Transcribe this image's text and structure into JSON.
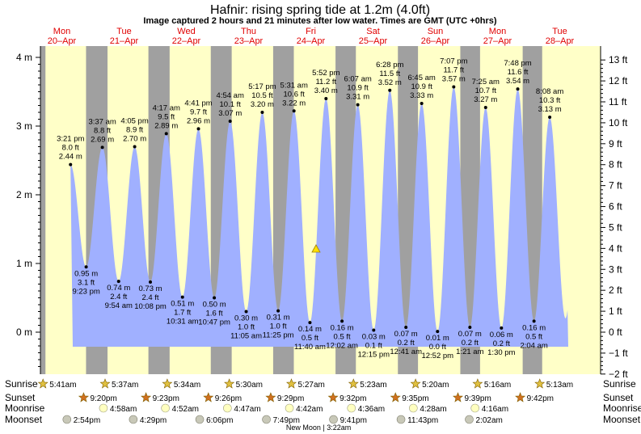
{
  "title": "Hafnir: rising  spring tide at 1.2m (4.0ft)",
  "subtitle": "Image captured 2 hours and 21 minutes after low water. Times are GMT (UTC +0hrs)",
  "colors": {
    "night": "#a0a0a0",
    "day": "#ffffc8",
    "tide": "#a0b0ff",
    "day_label": "#e00000",
    "sun_icon": "#e0c040",
    "sunset_icon": "#d07020",
    "moon_icon": "#ffffc0",
    "moonset_icon": "#c8c8b8",
    "current_marker": "#ffe000"
  },
  "days": [
    {
      "dow": "Mon",
      "date": "20–Apr"
    },
    {
      "dow": "Tue",
      "date": "21–Apr"
    },
    {
      "dow": "Wed",
      "date": "22–Apr"
    },
    {
      "dow": "Thu",
      "date": "23–Apr"
    },
    {
      "dow": "Fri",
      "date": "24–Apr"
    },
    {
      "dow": "Sat",
      "date": "25–Apr"
    },
    {
      "dow": "Sun",
      "date": "26–Apr"
    },
    {
      "dow": "Mon",
      "date": "27–Apr"
    },
    {
      "dow": "Tue",
      "date": "28–Apr"
    }
  ],
  "chart_data": {
    "type": "area",
    "left_axis": {
      "unit": "m",
      "ticks": [
        "0 m",
        "1 m",
        "2 m",
        "3 m",
        "4 m"
      ],
      "values": [
        0,
        1,
        2,
        3,
        4
      ],
      "range": [
        -0.6,
        4.2
      ]
    },
    "right_axis": {
      "unit": "ft",
      "ticks": [
        "−2 ft",
        "−1 ft",
        "0 ft",
        "1 ft",
        "2 ft",
        "3 ft",
        "4 ft",
        "5 ft",
        "6 ft",
        "7 ft",
        "8 ft",
        "9 ft",
        "10 ft",
        "11 ft",
        "12 ft",
        "13 ft"
      ],
      "values": [
        -2,
        -1,
        0,
        1,
        2,
        3,
        4,
        5,
        6,
        7,
        8,
        9,
        10,
        11,
        12,
        13
      ]
    },
    "tides": [
      {
        "type": "high",
        "day": 0,
        "time": "3:21 pm",
        "ft": "8.0 ft",
        "m": "2.44 m",
        "value": 2.44
      },
      {
        "type": "low",
        "day": 0,
        "time": "9:23 pm",
        "ft": "3.1 ft",
        "m": "0.95 m",
        "value": 0.95
      },
      {
        "type": "high",
        "day": 1,
        "time": "3:37 am",
        "ft": "8.8 ft",
        "m": "2.69 m",
        "value": 2.69
      },
      {
        "type": "low",
        "day": 1,
        "time": "9:54 am",
        "ft": "2.4 ft",
        "m": "0.74 m",
        "value": 0.74
      },
      {
        "type": "high",
        "day": 1,
        "time": "4:05 pm",
        "ft": "8.9 ft",
        "m": "2.70 m",
        "value": 2.7
      },
      {
        "type": "low",
        "day": 1,
        "time": "10:08 pm",
        "ft": "2.4 ft",
        "m": "0.73 m",
        "value": 0.73
      },
      {
        "type": "high",
        "day": 2,
        "time": "4:17 am",
        "ft": "9.5 ft",
        "m": "2.89 m",
        "value": 2.89
      },
      {
        "type": "low",
        "day": 2,
        "time": "10:31 am",
        "ft": "1.7 ft",
        "m": "0.51 m",
        "value": 0.51
      },
      {
        "type": "high",
        "day": 2,
        "time": "4:41 pm",
        "ft": "9.7 ft",
        "m": "2.96 m",
        "value": 2.96
      },
      {
        "type": "low",
        "day": 2,
        "time": "10:47 pm",
        "ft": "1.6 ft",
        "m": "0.50 m",
        "value": 0.5
      },
      {
        "type": "high",
        "day": 3,
        "time": "4:54 am",
        "ft": "10.1 ft",
        "m": "3.07 m",
        "value": 3.07
      },
      {
        "type": "low",
        "day": 3,
        "time": "11:05 am",
        "ft": "1.0 ft",
        "m": "0.30 m",
        "value": 0.3
      },
      {
        "type": "high",
        "day": 3,
        "time": "5:17 pm",
        "ft": "10.5 ft",
        "m": "3.20 m",
        "value": 3.2
      },
      {
        "type": "low",
        "day": 3,
        "time": "11:25 pm",
        "ft": "1.0 ft",
        "m": "0.31 m",
        "value": 0.31
      },
      {
        "type": "high",
        "day": 4,
        "time": "5:31 am",
        "ft": "10.6 ft",
        "m": "3.22 m",
        "value": 3.22
      },
      {
        "type": "low",
        "day": 4,
        "time": "11:40 am",
        "ft": "0.5 ft",
        "m": "0.14 m",
        "value": 0.14
      },
      {
        "type": "high",
        "day": 4,
        "time": "5:52 pm",
        "ft": "11.2 ft",
        "m": "3.40 m",
        "value": 3.4
      },
      {
        "type": "low",
        "day": 5,
        "time": "12:02 am",
        "ft": "0.5 ft",
        "m": "0.16 m",
        "value": 0.16
      },
      {
        "type": "high",
        "day": 5,
        "time": "6:07 am",
        "ft": "10.9 ft",
        "m": "3.31 m",
        "value": 3.31
      },
      {
        "type": "low",
        "day": 5,
        "time": "12:15 pm",
        "ft": "0.1 ft",
        "m": "0.03 m",
        "value": 0.03
      },
      {
        "type": "high",
        "day": 5,
        "time": "6:28 pm",
        "ft": "11.5 ft",
        "m": "3.52 m",
        "value": 3.52
      },
      {
        "type": "low",
        "day": 6,
        "time": "12:41 am",
        "ft": "0.2 ft",
        "m": "0.07 m",
        "value": 0.07
      },
      {
        "type": "high",
        "day": 6,
        "time": "6:45 am",
        "ft": "10.9 ft",
        "m": "3.33 m",
        "value": 3.33
      },
      {
        "type": "low",
        "day": 6,
        "time": "12:52 pm",
        "ft": "0.0 ft",
        "m": "0.01 m",
        "value": 0.01
      },
      {
        "type": "high",
        "day": 6,
        "time": "7:07 pm",
        "ft": "11.7 ft",
        "m": "3.57 m",
        "value": 3.57
      },
      {
        "type": "low",
        "day": 7,
        "time": "1:21 am",
        "ft": "0.2 ft",
        "m": "0.07 m",
        "value": 0.07
      },
      {
        "type": "high",
        "day": 7,
        "time": "7:25 am",
        "ft": "10.7 ft",
        "m": "3.27 m",
        "value": 3.27
      },
      {
        "type": "low",
        "day": 7,
        "time": "1:30 pm",
        "ft": "0.2 ft",
        "m": "0.06 m",
        "value": 0.06
      },
      {
        "type": "high",
        "day": 7,
        "time": "7:48 pm",
        "ft": "11.6 ft",
        "m": "3.54 m",
        "value": 3.54
      },
      {
        "type": "low",
        "day": 8,
        "time": "2:04 am",
        "ft": "0.5 ft",
        "m": "0.16 m",
        "value": 0.16
      },
      {
        "type": "high",
        "day": 8,
        "time": "8:08 am",
        "ft": "10.3 ft",
        "m": "3.13 m",
        "value": 3.13
      }
    ],
    "current": {
      "day": 4,
      "time_h": 14.02,
      "value": 1.2
    }
  },
  "rows": {
    "sunrise": {
      "label": "Sunrise",
      "times": [
        "5:41am",
        "5:37am",
        "5:34am",
        "5:30am",
        "5:27am",
        "5:23am",
        "5:20am",
        "5:16am",
        "5:13am"
      ]
    },
    "sunset": {
      "label": "Sunset",
      "times": [
        "9:20pm",
        "9:23pm",
        "9:26pm",
        "9:29pm",
        "9:32pm",
        "9:35pm",
        "9:39pm",
        "9:42pm"
      ]
    },
    "moonrise": {
      "label": "Moonrise",
      "times": [
        "4:58am",
        "4:52am",
        "4:47am",
        "4:42am",
        "4:36am",
        "4:28am",
        "4:16am"
      ]
    },
    "moonset": {
      "label": "Moonset",
      "times": [
        "2:54pm",
        "4:29pm",
        "6:06pm",
        "7:49pm",
        "9:41pm",
        "11:43pm",
        "2:02am"
      ]
    },
    "moon_phase": "New Moon | 3:22am"
  }
}
